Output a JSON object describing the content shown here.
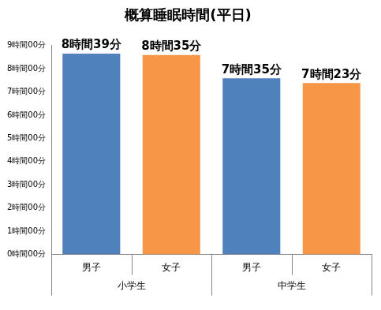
{
  "chart_data": {
    "type": "bar",
    "title": "概算睡眠時間(平日)",
    "categories": [
      "男子",
      "女子",
      "男子",
      "女子"
    ],
    "category_groups": [
      {
        "label": "小学生",
        "count": 2
      },
      {
        "label": "中学生",
        "count": 2
      }
    ],
    "values": [
      519,
      515,
      455,
      443
    ],
    "value_labels": [
      "8時間39分",
      "8時間35分",
      "7時間35分",
      "7時間23分"
    ],
    "colors": [
      "#4f81bd",
      "#f79646",
      "#4f81bd",
      "#f79646"
    ],
    "data_labels": true,
    "grid": false,
    "ylim": [
      0,
      540
    ],
    "yticks": [
      {
        "value": 0,
        "label": "0時間00分"
      },
      {
        "value": 60,
        "label": "1時間00分"
      },
      {
        "value": 120,
        "label": "2時間00分"
      },
      {
        "value": 180,
        "label": "3時間00分"
      },
      {
        "value": 240,
        "label": "4時間00分"
      },
      {
        "value": 300,
        "label": "5時間00分"
      },
      {
        "value": 360,
        "label": "6時間00分"
      },
      {
        "value": 420,
        "label": "7時間00分"
      },
      {
        "value": 480,
        "label": "8時間00分"
      },
      {
        "value": 540,
        "label": "9時間00分"
      }
    ]
  }
}
